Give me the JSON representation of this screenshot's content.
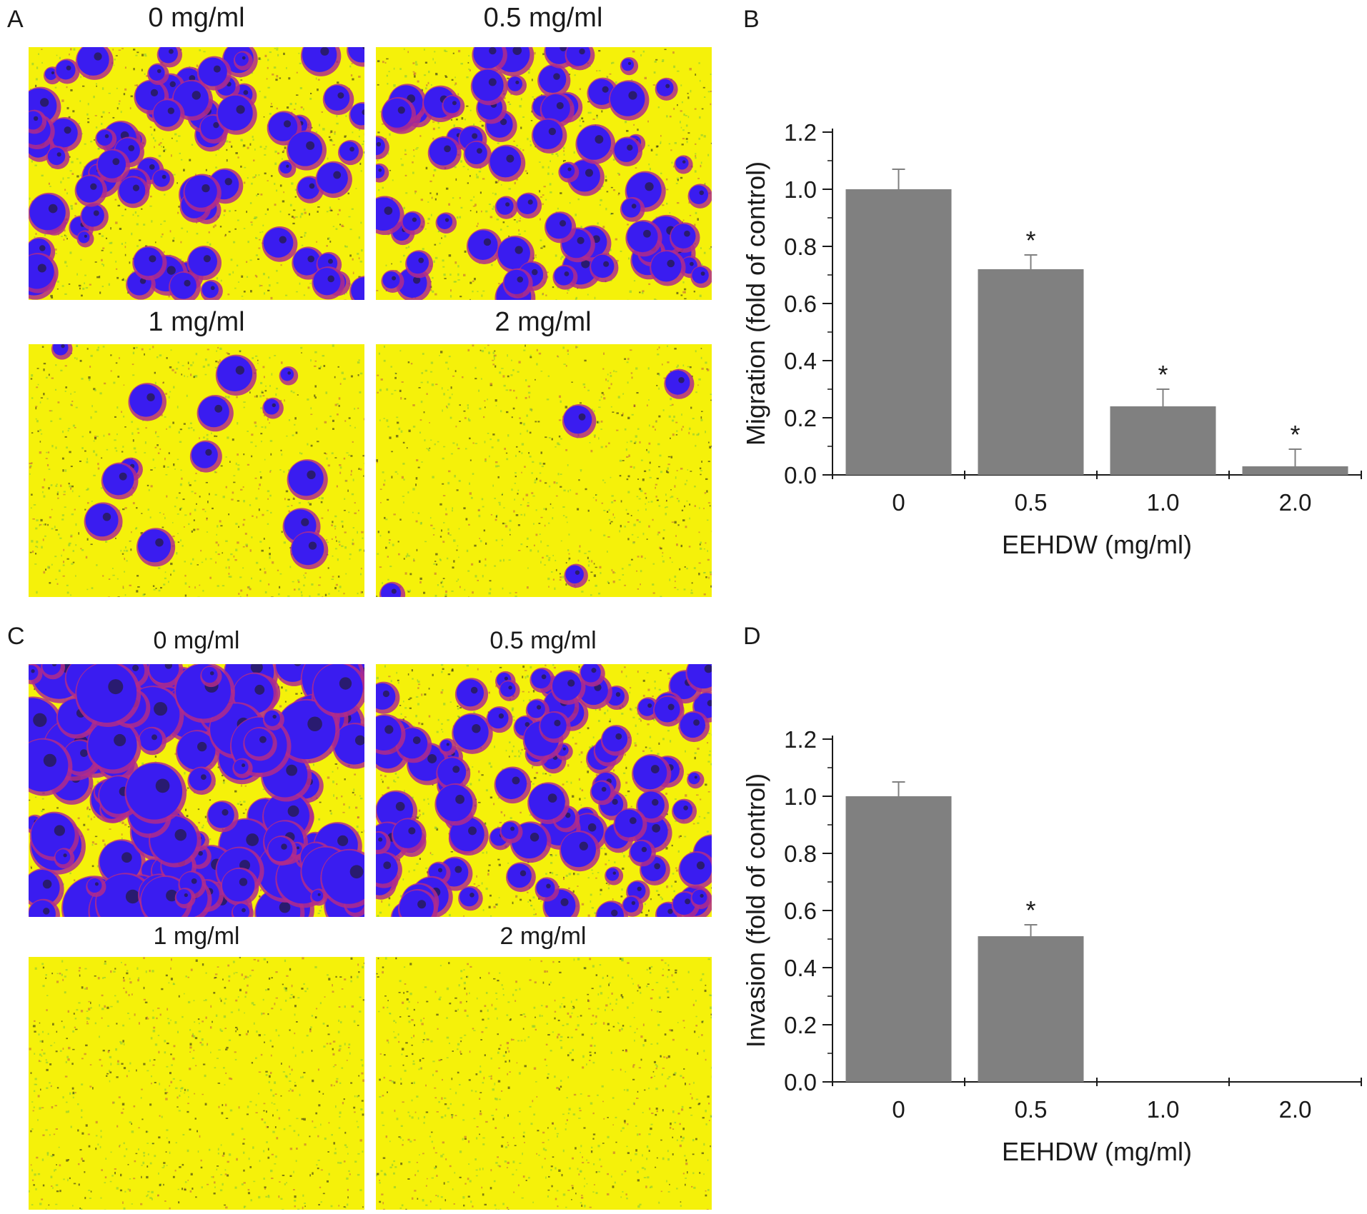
{
  "colors": {
    "background_yellow": "#f5f10a",
    "cell_blue": "#3a1cf0",
    "cell_magenta": "#b02c8a",
    "cell_dark": "#1e1a1a",
    "bar_gray": "#808080"
  },
  "panels": {
    "A": {
      "letter": "A",
      "images": [
        {
          "label": "0 mg/ml",
          "density": 0.55
        },
        {
          "label": "0.5 mg/ml",
          "density": 0.5
        },
        {
          "label": "1 mg/ml",
          "density": 0.1
        },
        {
          "label": "2 mg/ml",
          "density": 0.03
        }
      ]
    },
    "B": {
      "letter": "B"
    },
    "C": {
      "letter": "C",
      "images": [
        {
          "label": "0 mg/ml",
          "density": 0.95
        },
        {
          "label": "0.5 mg/ml",
          "density": 0.7
        },
        {
          "label": "1 mg/ml",
          "density": 0.0
        },
        {
          "label": "2 mg/ml",
          "density": 0.0
        }
      ]
    },
    "D": {
      "letter": "D"
    }
  },
  "chart_data": [
    {
      "type": "bar",
      "title": "",
      "categories": [
        "0",
        "0.5",
        "1.0",
        "2.0"
      ],
      "values": [
        1.0,
        0.72,
        0.24,
        0.03
      ],
      "errors": [
        0.07,
        0.05,
        0.06,
        0.06
      ],
      "significance": [
        "",
        "*",
        "*",
        "*"
      ],
      "xlabel": "EEHDW (mg/ml)",
      "ylabel": "Migration (fold of control)",
      "ylim": [
        0.0,
        1.2
      ],
      "yticks": [
        "0.0",
        "0.2",
        "0.4",
        "0.6",
        "0.8",
        "1.0",
        "1.2"
      ],
      "grid": false
    },
    {
      "type": "bar",
      "title": "",
      "categories": [
        "0",
        "0.5",
        "1.0",
        "2.0"
      ],
      "values": [
        1.0,
        0.51,
        0.0,
        0.0
      ],
      "errors": [
        0.05,
        0.04,
        0.0,
        0.0
      ],
      "significance": [
        "",
        "*",
        "",
        ""
      ],
      "xlabel": "EEHDW (mg/ml)",
      "ylabel": "Invasion (fold of control)",
      "ylim": [
        0.0,
        1.2
      ],
      "yticks": [
        "0.0",
        "0.2",
        "0.4",
        "0.6",
        "0.8",
        "1.0",
        "1.2"
      ],
      "grid": false
    }
  ]
}
